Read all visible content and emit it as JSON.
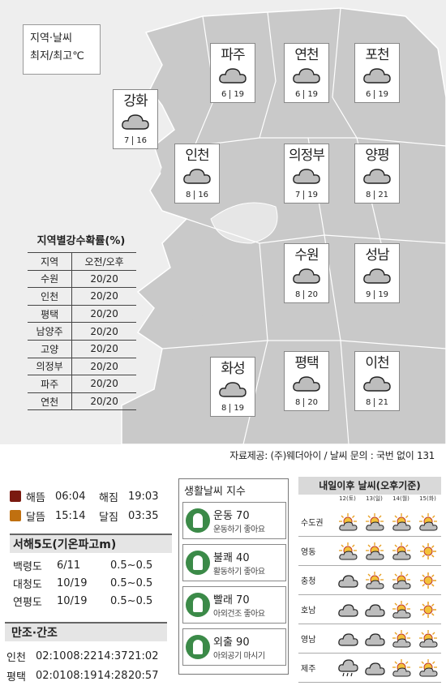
{
  "legend": {
    "line1": "지역·날씨",
    "line2": "최저/최고℃"
  },
  "cities": [
    {
      "name": "파주",
      "low": "6",
      "high": "19"
    },
    {
      "name": "연천",
      "low": "6",
      "high": "19"
    },
    {
      "name": "포천",
      "low": "6",
      "high": "19"
    },
    {
      "name": "강화",
      "low": "7",
      "high": "16"
    },
    {
      "name": "인천",
      "low": "8",
      "high": "16"
    },
    {
      "name": "의정부",
      "low": "7",
      "high": "19"
    },
    {
      "name": "양평",
      "low": "8",
      "high": "21"
    },
    {
      "name": "수원",
      "low": "8",
      "high": "20"
    },
    {
      "name": "성남",
      "low": "9",
      "high": "19"
    },
    {
      "name": "화성",
      "low": "8",
      "high": "19"
    },
    {
      "name": "평택",
      "low": "8",
      "high": "20"
    },
    {
      "name": "이천",
      "low": "8",
      "high": "21"
    }
  ],
  "precip": {
    "title": "지역별강수확률(%)",
    "header": [
      "지역",
      "오전/오후"
    ],
    "rows": [
      [
        "수원",
        "20/20"
      ],
      [
        "인천",
        "20/20"
      ],
      [
        "평택",
        "20/20"
      ],
      [
        "남양주",
        "20/20"
      ],
      [
        "고양",
        "20/20"
      ],
      [
        "의정부",
        "20/20"
      ],
      [
        "파주",
        "20/20"
      ],
      [
        "연천",
        "20/20"
      ]
    ]
  },
  "source": "자료제공: (주)웨더아이 / 날씨 문의 : 국번 없이 131",
  "sun": {
    "sunrise_label": "해뜸",
    "sunrise": "06:04",
    "sunset_label": "해짐",
    "sunset": "19:03",
    "moonrise_label": "달뜸",
    "moonrise": "15:14",
    "moonset_label": "달짐",
    "moonset": "03:35"
  },
  "wave": {
    "title": "서해5도(기온파고m)",
    "rows": [
      [
        "백령도",
        "6/11",
        "0.5~0.5"
      ],
      [
        "대청도",
        "10/19",
        "0.5~0.5"
      ],
      [
        "연평도",
        "10/19",
        "0.5~0.5"
      ]
    ]
  },
  "tide": {
    "title": "만조·간조",
    "rows": [
      [
        "인천",
        "02:10",
        "08:22",
        "14:37",
        "21:02"
      ],
      [
        "평택",
        "02:01",
        "08:19",
        "14:28",
        "20:57"
      ]
    ]
  },
  "life": {
    "title": "생활날씨 지수",
    "items": [
      {
        "label": "운동 70",
        "desc": "운동하기 좋아요",
        "icon": "sports-icon"
      },
      {
        "label": "불쾌 40",
        "desc": "활동하기 좋아요",
        "icon": "discomfort-icon"
      },
      {
        "label": "빨래 70",
        "desc": "아외건조 좋아요",
        "icon": "laundry-icon"
      },
      {
        "label": "외출 90",
        "desc": "아외공기 마시기",
        "icon": "outing-icon"
      }
    ]
  },
  "forecast": {
    "title": "내일이후 날씨(오후기준)",
    "days": [
      "12(토)",
      "13(일)",
      "14(월)",
      "15(화)"
    ],
    "rows": [
      {
        "region": "수도권",
        "icons": [
          "sun-cloud",
          "sun-cloud",
          "sun-cloud",
          "sun-cloud"
        ]
      },
      {
        "region": "영동",
        "icons": [
          "sun-cloud",
          "sun-cloud",
          "sun-cloud",
          "sun"
        ]
      },
      {
        "region": "충청",
        "icons": [
          "cloud",
          "sun-cloud",
          "sun-cloud",
          "sun"
        ]
      },
      {
        "region": "호남",
        "icons": [
          "cloud",
          "cloud",
          "sun-cloud",
          "sun"
        ]
      },
      {
        "region": "영남",
        "icons": [
          "cloud",
          "cloud",
          "sun-cloud",
          "sun-cloud"
        ]
      },
      {
        "region": "제주",
        "icons": [
          "cloud-rain",
          "cloud",
          "sun-cloud",
          "sun-cloud"
        ]
      }
    ]
  },
  "colors": {
    "map_bg": "#eeeeee",
    "land": "#c9c9c9",
    "green": "#3b8a48",
    "sun": "#e8a020"
  }
}
